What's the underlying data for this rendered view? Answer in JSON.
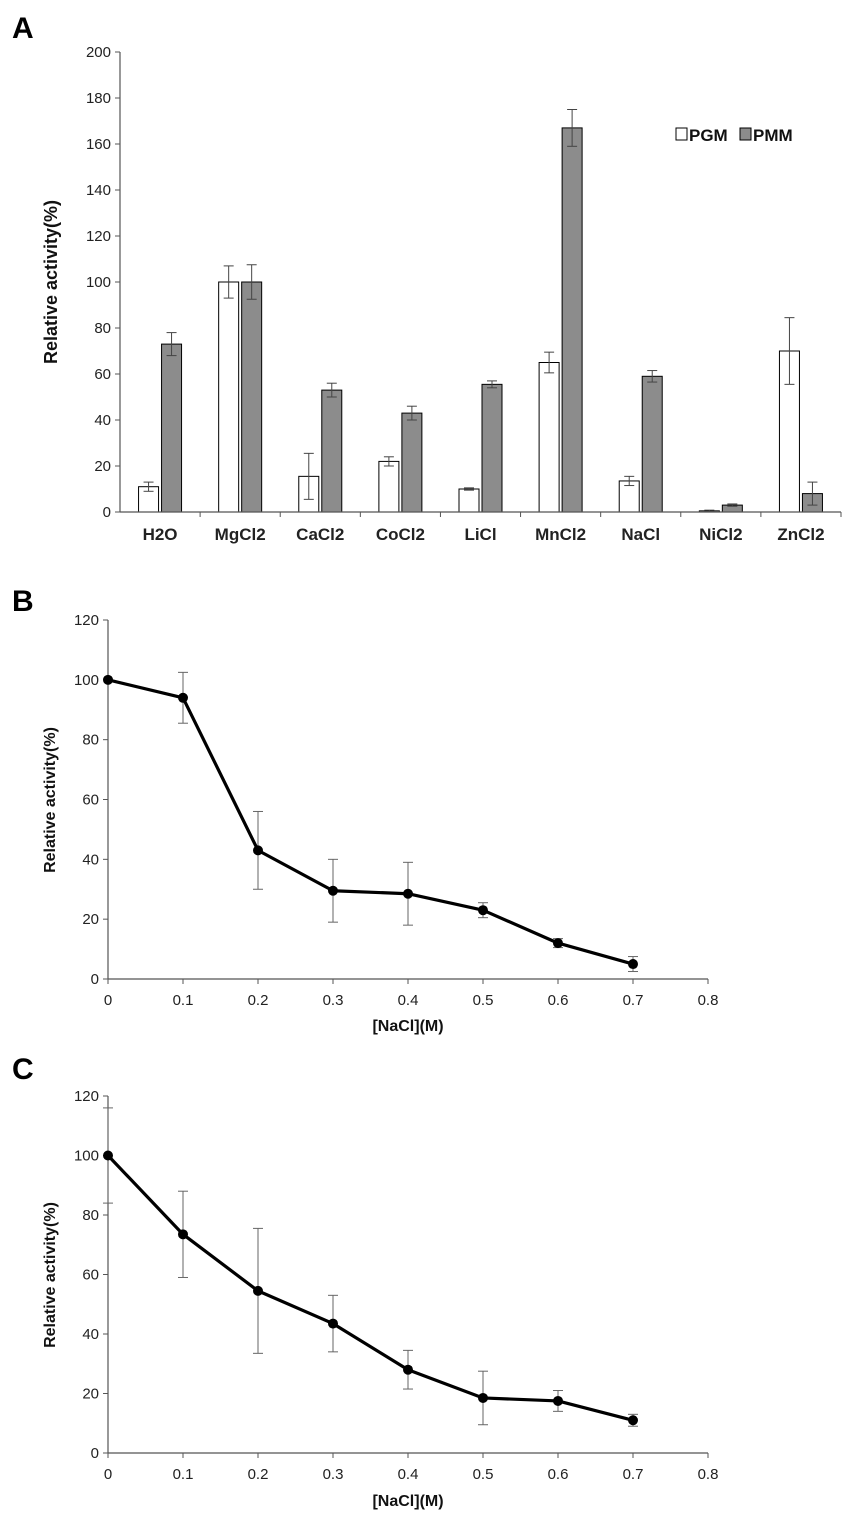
{
  "chart_data": [
    {
      "panel": "A",
      "type": "bar",
      "title": "",
      "xlabel": "",
      "ylabel": "Relative activity(%)",
      "ylim": [
        0,
        200
      ],
      "yticks": [
        0,
        20,
        40,
        60,
        80,
        100,
        120,
        140,
        160,
        180,
        200
      ],
      "categories": [
        "H2O",
        "MgCl2",
        "CaCl2",
        "CoCl2",
        "LiCl",
        "MnCl2",
        "NaCl",
        "NiCl2",
        "ZnCl2"
      ],
      "legend_position": "top-right",
      "series": [
        {
          "name": "PGM",
          "color": "#ffffff",
          "values": [
            11,
            100,
            15.5,
            22,
            10,
            65,
            13.5,
            0.5,
            70
          ],
          "errors": [
            2,
            7,
            10,
            2,
            0.5,
            4.5,
            2,
            0.3,
            14.5
          ]
        },
        {
          "name": "PMM",
          "color": "#8c8c8c",
          "values": [
            73,
            100,
            53,
            43,
            55.5,
            167,
            59,
            3,
            8
          ],
          "errors": [
            5,
            7.5,
            3,
            3,
            1.5,
            8,
            2.5,
            0.5,
            5
          ]
        }
      ]
    },
    {
      "panel": "B",
      "type": "line",
      "title": "",
      "xlabel": "[NaCl](M)",
      "ylabel": "Relative activity(%)",
      "xlim": [
        0,
        0.8
      ],
      "ylim": [
        0,
        120
      ],
      "xticks": [
        0,
        0.1,
        0.2,
        0.3,
        0.4,
        0.5,
        0.6,
        0.7,
        0.8
      ],
      "yticks": [
        0,
        20,
        40,
        60,
        80,
        100,
        120
      ],
      "x": [
        0,
        0.1,
        0.2,
        0.3,
        0.4,
        0.5,
        0.6,
        0.7
      ],
      "series": [
        {
          "name": "",
          "values": [
            100,
            94,
            43,
            29.5,
            28.5,
            23,
            12,
            5
          ],
          "errors": [
            0,
            8.5,
            13,
            10.5,
            10.5,
            2.5,
            1.5,
            2.5
          ]
        }
      ]
    },
    {
      "panel": "C",
      "type": "line",
      "title": "",
      "xlabel": "[NaCl](M)",
      "ylabel": "Relative activity(%)",
      "xlim": [
        0,
        0.8
      ],
      "ylim": [
        0,
        120
      ],
      "xticks": [
        0,
        0.1,
        0.2,
        0.3,
        0.4,
        0.5,
        0.6,
        0.7,
        0.8
      ],
      "yticks": [
        0,
        20,
        40,
        60,
        80,
        100,
        120
      ],
      "x": [
        0,
        0.1,
        0.2,
        0.3,
        0.4,
        0.5,
        0.6,
        0.7
      ],
      "series": [
        {
          "name": "",
          "values": [
            100,
            73.5,
            54.5,
            43.5,
            28,
            18.5,
            17.5,
            11
          ],
          "errors": [
            16,
            14.5,
            21,
            9.5,
            6.5,
            9,
            3.5,
            2
          ]
        }
      ]
    }
  ]
}
